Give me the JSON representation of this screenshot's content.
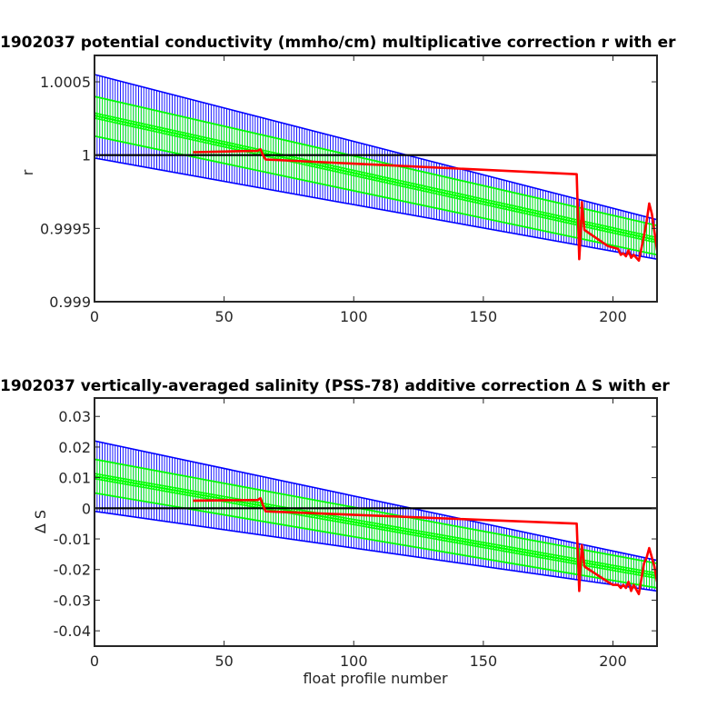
{
  "chart_data": [
    {
      "type": "line",
      "title": "1902037 potential conductivity (mmho/cm) multiplicative correction r with er",
      "xlabel": "",
      "ylabel": "r",
      "xlim": [
        0,
        217
      ],
      "ylim": [
        0.999,
        1.00068
      ],
      "xticks": [
        0,
        50,
        100,
        150,
        200
      ],
      "xtick_labels": [
        "0",
        "50",
        "100",
        "150",
        "200"
      ],
      "yticks": [
        0.999,
        0.9995,
        1,
        1.0005
      ],
      "ytick_labels": [
        "0.999",
        "0.9995",
        "1",
        "1.0005"
      ],
      "grid": false,
      "colors": {
        "outer_band": "#0000ff",
        "inner_band": "#00ff00",
        "profile": "#ff0000",
        "reference": "#000000"
      },
      "series": [
        {
          "role": "outer-error-band",
          "x": [
            0,
            217
          ],
          "upper": [
            1.00055,
            0.99956
          ],
          "lower": [
            0.99998,
            0.99929
          ]
        },
        {
          "role": "inner-error-band",
          "x": [
            0,
            217
          ],
          "upper": [
            1.0004,
            0.99952
          ],
          "lower": [
            1.00013,
            0.99932
          ]
        },
        {
          "role": "fitted-center",
          "x": [
            0,
            217
          ],
          "y": [
            1.00027,
            0.99942
          ]
        },
        {
          "role": "reference-line",
          "x": [
            0,
            217
          ],
          "y": [
            1.0,
            1.0
          ]
        },
        {
          "role": "profile-correction",
          "x": [
            38,
            63,
            64,
            65,
            66,
            186,
            187,
            187.5,
            188,
            189,
            198,
            200,
            202,
            203,
            204,
            205,
            206,
            207,
            208,
            210,
            212,
            213,
            214,
            215,
            216,
            217
          ],
          "y": [
            1.00002,
            1.00003,
            1.00004,
            1.0,
            0.99997,
            0.99987,
            0.99929,
            0.99945,
            0.99968,
            0.99949,
            0.99938,
            0.99937,
            0.99936,
            0.99932,
            0.99933,
            0.99931,
            0.99935,
            0.9993,
            0.99932,
            0.99928,
            0.99945,
            0.99955,
            0.99967,
            0.9996,
            0.99948,
            0.99935
          ]
        }
      ]
    },
    {
      "type": "line",
      "title": "1902037 vertically-averaged salinity (PSS-78) additive correction ∆ S with er",
      "xlabel": "float profile number",
      "ylabel": "∆ S",
      "xlim": [
        0,
        217
      ],
      "ylim": [
        -0.045,
        0.036
      ],
      "xticks": [
        0,
        50,
        100,
        150,
        200
      ],
      "xtick_labels": [
        "0",
        "50",
        "100",
        "150",
        "200"
      ],
      "yticks": [
        -0.04,
        -0.03,
        -0.02,
        -0.01,
        0,
        0.01,
        0.02,
        0.03
      ],
      "ytick_labels": [
        "-0.04",
        "-0.03",
        "-0.02",
        "-0.01",
        "0",
        "0.01",
        "0.02",
        "0.03"
      ],
      "grid": false,
      "colors": {
        "outer_band": "#0000ff",
        "inner_band": "#00ff00",
        "profile": "#ff0000",
        "reference": "#000000"
      },
      "series": [
        {
          "role": "outer-error-band",
          "x": [
            0,
            217
          ],
          "upper": [
            0.022,
            -0.017
          ],
          "lower": [
            -0.001,
            -0.027
          ]
        },
        {
          "role": "inner-error-band",
          "x": [
            0,
            217
          ],
          "upper": [
            0.016,
            -0.018
          ],
          "lower": [
            0.005,
            -0.026
          ]
        },
        {
          "role": "fitted-center",
          "x": [
            0,
            217
          ],
          "y": [
            0.0105,
            -0.022
          ]
        },
        {
          "role": "reference-line",
          "x": [
            0,
            217
          ],
          "y": [
            0,
            0
          ]
        },
        {
          "role": "profile-correction",
          "x": [
            38,
            63,
            64,
            65,
            66,
            186,
            187,
            187.5,
            188,
            189,
            198,
            200,
            202,
            203,
            204,
            205,
            206,
            207,
            208,
            210,
            212,
            213,
            214,
            215,
            216,
            217
          ],
          "y": [
            0.0025,
            0.0027,
            0.0033,
            0.001,
            -0.001,
            -0.005,
            -0.027,
            -0.018,
            -0.012,
            -0.019,
            -0.024,
            -0.025,
            -0.025,
            -0.026,
            -0.025,
            -0.026,
            -0.024,
            -0.027,
            -0.025,
            -0.028,
            -0.018,
            -0.016,
            -0.013,
            -0.016,
            -0.019,
            -0.024
          ]
        }
      ]
    }
  ]
}
